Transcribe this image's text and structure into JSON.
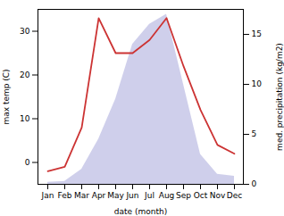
{
  "chart_data": {
    "type": "line",
    "categories": [
      "Jan",
      "Feb",
      "Mar",
      "Apr",
      "May",
      "Jun",
      "Jul",
      "Aug",
      "Sep",
      "Oct",
      "Nov",
      "Dec"
    ],
    "xlabel": "date (month)",
    "ylabel": "max temp (C)",
    "y2label": "med. precipitation (kg/m2)",
    "ylim": [
      -5,
      35
    ],
    "yticks": [
      0,
      10,
      20,
      30
    ],
    "y2lim": [
      0,
      17.5
    ],
    "y2ticks": [
      0,
      5,
      10,
      15
    ],
    "series": [
      {
        "type": "line",
        "color": "#cc3333",
        "values": [
          -2,
          -1,
          8,
          33,
          25,
          25,
          28,
          33,
          22,
          12,
          4,
          2
        ]
      },
      {
        "type": "area",
        "color": "#8888cc",
        "axis": "y2",
        "values": [
          0.2,
          0.3,
          1.5,
          4.5,
          8.5,
          14,
          16,
          17,
          10,
          3,
          1,
          0.8
        ]
      }
    ]
  }
}
